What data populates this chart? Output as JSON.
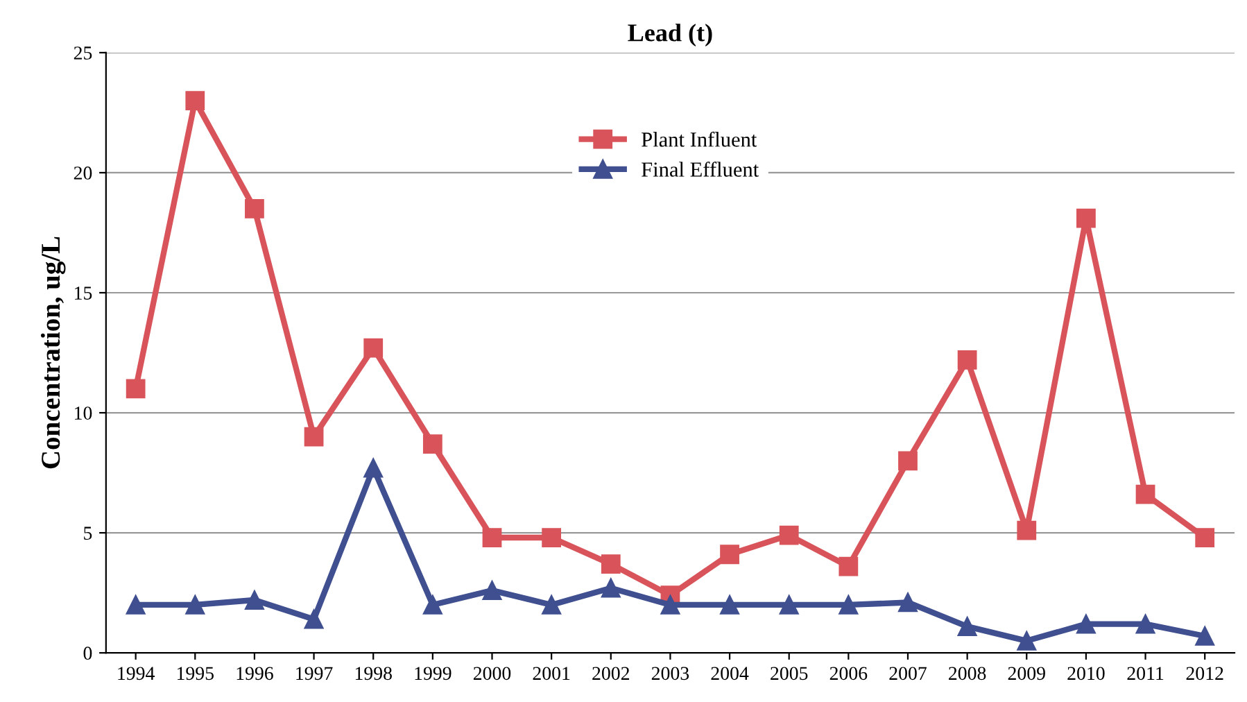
{
  "chart_data": {
    "type": "line",
    "title": "Lead (t)",
    "ylabel": "Concentration, ug/L",
    "categories": [
      "1994",
      "1995",
      "1996",
      "1997",
      "1998",
      "1999",
      "2000",
      "2001",
      "2002",
      "2003",
      "2004",
      "2005",
      "2006",
      "2007",
      "2008",
      "2009",
      "2010",
      "2011",
      "2012"
    ],
    "series": [
      {
        "name": "Plant Influent",
        "color": "#d9545a",
        "marker": "square",
        "values": [
          11.0,
          23.0,
          18.5,
          9.0,
          12.7,
          8.7,
          4.8,
          4.8,
          3.7,
          2.4,
          4.1,
          4.9,
          3.6,
          8.0,
          12.2,
          5.1,
          18.1,
          6.6,
          4.8
        ]
      },
      {
        "name": "Final Effluent",
        "color": "#3f4f8f",
        "marker": "triangle",
        "values": [
          2.0,
          2.0,
          2.2,
          1.4,
          7.7,
          2.0,
          2.6,
          2.0,
          2.7,
          2.0,
          2.0,
          2.0,
          2.0,
          2.1,
          1.1,
          0.5,
          1.2,
          1.2,
          0.7
        ]
      }
    ],
    "ylim": [
      0,
      25
    ],
    "yticks": [
      0,
      5,
      10,
      15,
      20,
      25
    ],
    "grid": "y",
    "legend": "top",
    "line_style": "solid"
  }
}
